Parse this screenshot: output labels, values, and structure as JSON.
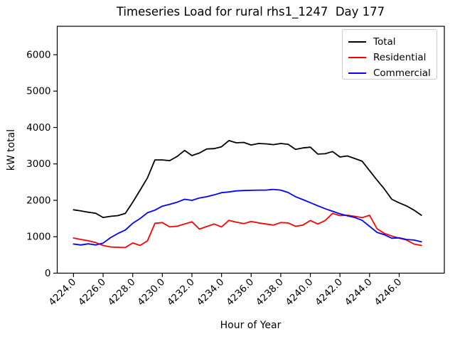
{
  "chart_data": {
    "type": "line",
    "title": "Timeseries Load for rural rhs1_1247  Day 177",
    "xlabel": "Hour of Year",
    "ylabel": "kW total",
    "xlim": [
      4222.9,
      4249.05
    ],
    "ylim": [
      0,
      6780
    ],
    "grid": false,
    "legend_position": "upper right",
    "xticks": [
      {
        "value": 4224,
        "label": "4224.0"
      },
      {
        "value": 4226,
        "label": "4226.0"
      },
      {
        "value": 4228,
        "label": "4228.0"
      },
      {
        "value": 4230,
        "label": "4230.0"
      },
      {
        "value": 4232,
        "label": "4232.0"
      },
      {
        "value": 4234,
        "label": "4234.0"
      },
      {
        "value": 4236,
        "label": "4236.0"
      },
      {
        "value": 4238,
        "label": "4238.0"
      },
      {
        "value": 4240,
        "label": "4240.0"
      },
      {
        "value": 4242,
        "label": "4242.0"
      },
      {
        "value": 4244,
        "label": "4244.0"
      },
      {
        "value": 4246,
        "label": "4246.0"
      }
    ],
    "yticks": [
      {
        "value": 0,
        "label": "0"
      },
      {
        "value": 1000,
        "label": "1000"
      },
      {
        "value": 2000,
        "label": "2000"
      },
      {
        "value": 3000,
        "label": "3000"
      },
      {
        "value": 4000,
        "label": "4000"
      },
      {
        "value": 5000,
        "label": "5000"
      },
      {
        "value": 6000,
        "label": "6000"
      }
    ],
    "x": [
      4224.0,
      4224.5,
      4225.0,
      4225.5,
      4226.0,
      4226.5,
      4227.0,
      4227.5,
      4228.0,
      4228.5,
      4229.0,
      4229.5,
      4230.0,
      4230.5,
      4231.0,
      4231.5,
      4232.0,
      4232.5,
      4233.0,
      4233.5,
      4234.0,
      4234.5,
      4235.0,
      4235.5,
      4236.0,
      4236.5,
      4237.0,
      4237.5,
      4238.0,
      4238.5,
      4239.0,
      4239.5,
      4240.0,
      4240.5,
      4241.0,
      4241.5,
      4242.0,
      4242.5,
      4243.0,
      4243.5,
      4244.0,
      4244.5,
      4245.0,
      4245.5,
      4246.0,
      4246.5,
      4247.0,
      4247.5
    ],
    "series": [
      {
        "name": "Total",
        "color": "#000000",
        "values": [
          1740,
          1710,
          1675,
          1645,
          1530,
          1560,
          1580,
          1640,
          1950,
          2280,
          2620,
          3110,
          3110,
          3090,
          3205,
          3370,
          3230,
          3300,
          3410,
          3420,
          3470,
          3640,
          3580,
          3590,
          3520,
          3560,
          3550,
          3530,
          3560,
          3540,
          3400,
          3440,
          3460,
          3270,
          3280,
          3340,
          3190,
          3220,
          3150,
          3075,
          2815,
          2555,
          2310,
          2030,
          1930,
          1845,
          1730,
          1590
        ]
      },
      {
        "name": "Residential",
        "color": "#ff0000",
        "values": [
          965,
          925,
          890,
          840,
          760,
          720,
          710,
          705,
          830,
          760,
          890,
          1370,
          1390,
          1270,
          1290,
          1350,
          1410,
          1210,
          1280,
          1350,
          1270,
          1450,
          1400,
          1360,
          1420,
          1380,
          1350,
          1320,
          1390,
          1380,
          1285,
          1320,
          1445,
          1350,
          1445,
          1640,
          1580,
          1590,
          1560,
          1525,
          1590,
          1220,
          1090,
          1020,
          960,
          910,
          800,
          760
        ]
      },
      {
        "name": "Commercial",
        "color": "#0000ff",
        "values": [
          800,
          775,
          805,
          775,
          825,
          975,
          1090,
          1185,
          1370,
          1500,
          1660,
          1730,
          1840,
          1890,
          1950,
          2030,
          2000,
          2065,
          2100,
          2150,
          2210,
          2230,
          2260,
          2270,
          2275,
          2280,
          2280,
          2300,
          2280,
          2215,
          2100,
          2020,
          1935,
          1850,
          1770,
          1700,
          1630,
          1575,
          1530,
          1450,
          1285,
          1120,
          1055,
          960,
          970,
          925,
          910,
          860
        ]
      }
    ]
  }
}
